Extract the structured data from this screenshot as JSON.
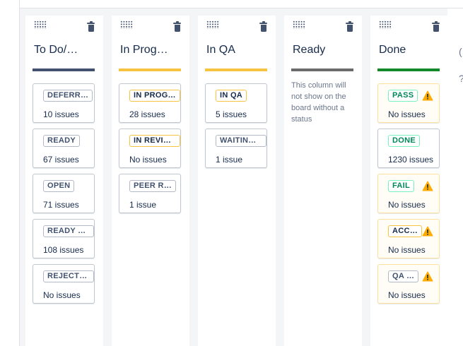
{
  "board": {
    "columns": [
      {
        "title": "To Do/…",
        "bar_color": "#42526e",
        "cards": [
          {
            "status": "DEFERR…",
            "count": "10 issues",
            "tone": "blue"
          },
          {
            "status": "READY",
            "count": "67 issues",
            "tone": "blue"
          },
          {
            "status": "OPEN",
            "count": "71 issues",
            "tone": "blue"
          },
          {
            "status": "READY T…",
            "count": "108 issues",
            "tone": "blue"
          },
          {
            "status": "REJECTED",
            "count": "No issues",
            "tone": "blue"
          }
        ]
      },
      {
        "title": "In Prog…",
        "bar_color": "#f6c342",
        "cards": [
          {
            "status": "IN PROG…",
            "count": "28 issues",
            "tone": "yellow"
          },
          {
            "status": "IN REVIEW",
            "count": "No issues",
            "tone": "yellow"
          },
          {
            "status": "PEER R…",
            "count": "1 issue",
            "tone": "blue"
          }
        ]
      },
      {
        "title": "In QA",
        "bar_color": "#f6c342",
        "cards": [
          {
            "status": "IN QA",
            "count": "5 issues",
            "tone": "yellow"
          },
          {
            "status": "WAITING…",
            "count": "1 issue",
            "tone": "blue"
          }
        ]
      },
      {
        "title": "Ready",
        "bar_color": "#6b6b6b",
        "note": "This column will not show on the board without a status"
      },
      {
        "title": "Done",
        "bar_color": "#14892c",
        "cards": [
          {
            "status": "PASS",
            "count": "No issues",
            "tone": "green",
            "warning": true
          },
          {
            "status": "DONE",
            "count": "1230 issues",
            "tone": "green",
            "warning": false
          },
          {
            "status": "FAIL",
            "count": "No issues",
            "tone": "green",
            "warning": true
          },
          {
            "status": "ACC…",
            "count": "No issues",
            "tone": "yellow",
            "warning": true
          },
          {
            "status": "QA …",
            "count": "No issues",
            "tone": "blue",
            "warning": true
          }
        ]
      }
    ]
  },
  "icons": {
    "column_drag": "drag-handle-icon",
    "column_delete": "trash-icon",
    "card_warning": "warning-icon",
    "side_a": "scroll-hint-icon",
    "side_b": "help-icon"
  },
  "side_panel": {
    "glyph_a": "(",
    "glyph_b": "?"
  }
}
